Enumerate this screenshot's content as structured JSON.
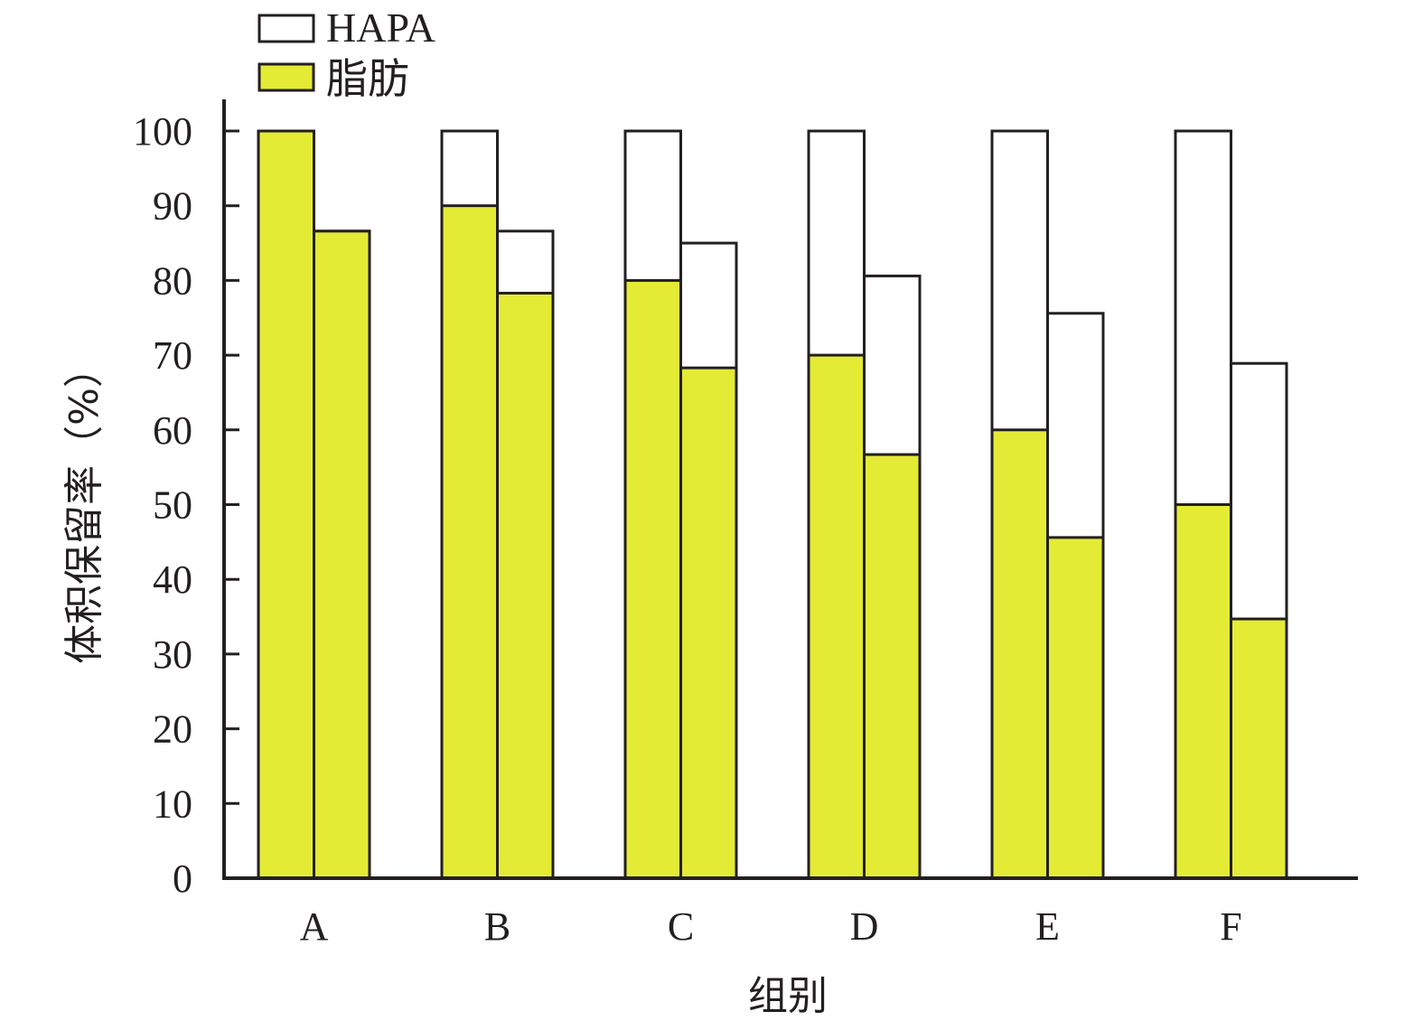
{
  "chart_data": {
    "type": "bar",
    "stacked_bar_pairs": true,
    "categories": [
      "A",
      "B",
      "C",
      "D",
      "E",
      "F"
    ],
    "series": [
      {
        "name": "HAPA",
        "color": "#ffffff"
      },
      {
        "name": "脂肪",
        "color": "#e4eb35"
      }
    ],
    "bars": [
      [
        {
          "total": 100,
          "fat": 100
        },
        {
          "total": 86.6,
          "fat": 86.6
        }
      ],
      [
        {
          "total": 100,
          "fat": 90
        },
        {
          "total": 86.6,
          "fat": 78.3
        }
      ],
      [
        {
          "total": 100,
          "fat": 80
        },
        {
          "total": 85.0,
          "fat": 68.3
        }
      ],
      [
        {
          "total": 100,
          "fat": 70
        },
        {
          "total": 80.6,
          "fat": 56.7
        }
      ],
      [
        {
          "total": 100,
          "fat": 60
        },
        {
          "total": 75.6,
          "fat": 45.6
        }
      ],
      [
        {
          "total": 100,
          "fat": 50
        },
        {
          "total": 68.9,
          "fat": 34.7
        }
      ]
    ],
    "ylabel": "体积保留率（%）",
    "xlabel": "组别",
    "ylim": [
      0,
      100
    ],
    "yticks": [
      "0",
      "10",
      "20",
      "30",
      "40",
      "50",
      "60",
      "70",
      "80",
      "90",
      "100"
    ],
    "grid": false,
    "legend_position": "top-left"
  }
}
